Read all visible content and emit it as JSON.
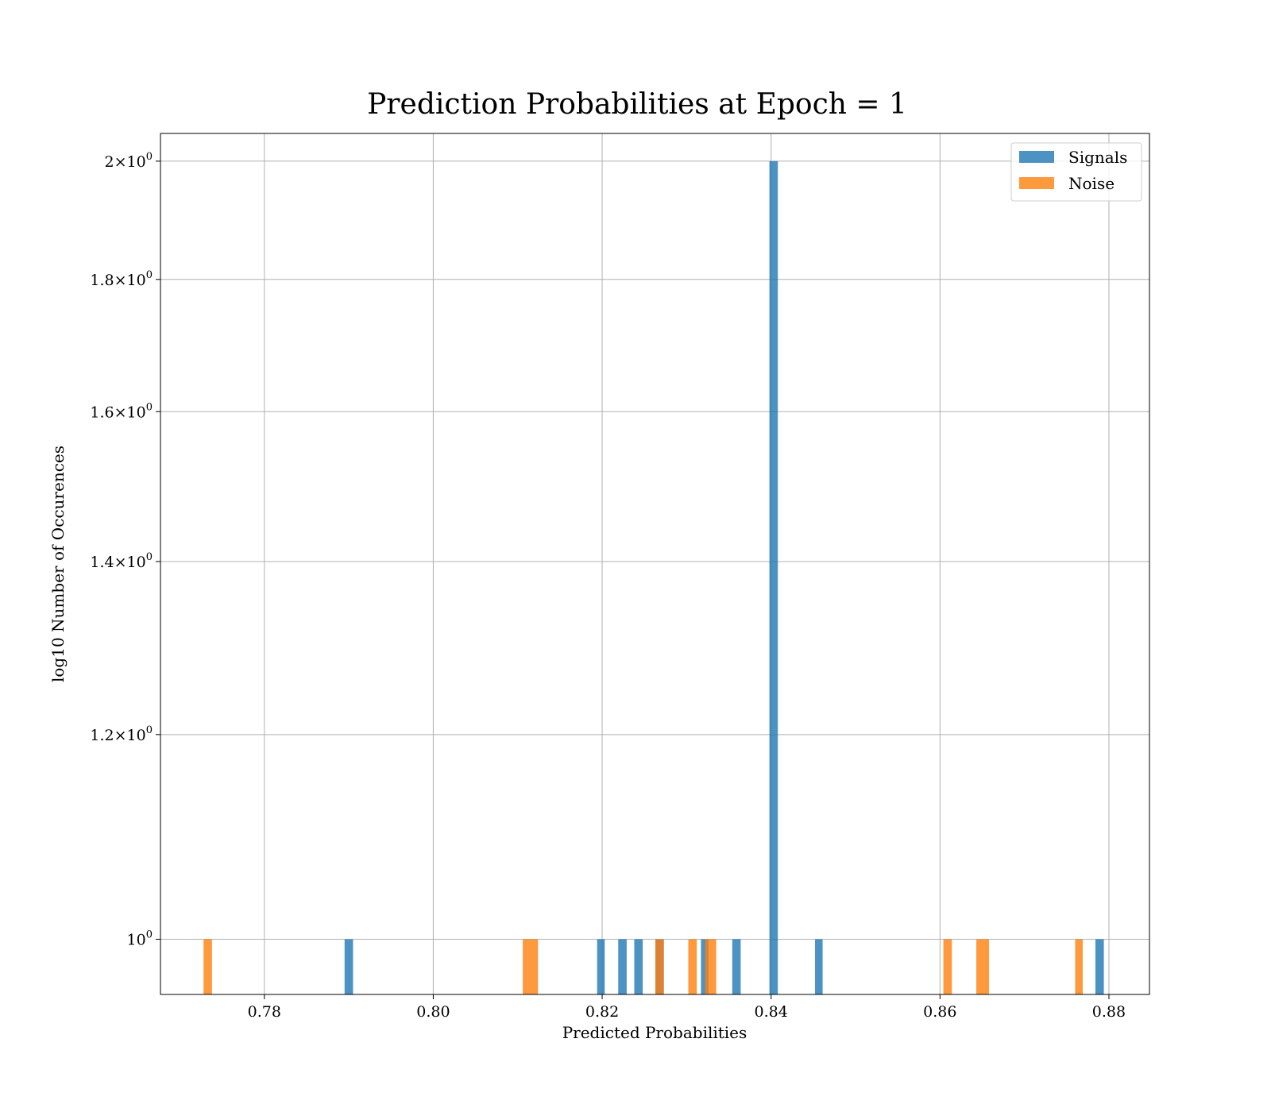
{
  "chart_data": {
    "type": "bar",
    "title": "Prediction Probabilities at Epoch = 1",
    "xlabel": "Predicted Probabilities",
    "ylabel": "log10 Number of Occurences",
    "xlim": [
      0.7677,
      0.8848
    ],
    "ylim": [
      0.952,
      2.05
    ],
    "yscale": "log",
    "grid": true,
    "legend_position": "top-right",
    "x_ticks": [
      {
        "value": 0.78,
        "label": "0.78"
      },
      {
        "value": 0.8,
        "label": "0.80"
      },
      {
        "value": 0.82,
        "label": "0.82"
      },
      {
        "value": 0.84,
        "label": "0.84"
      },
      {
        "value": 0.86,
        "label": "0.86"
      },
      {
        "value": 0.88,
        "label": "0.88"
      }
    ],
    "y_ticks": [
      {
        "value": 1.0,
        "mantissa": "",
        "label": "10"
      },
      {
        "value": 1.2,
        "mantissa": "1.2",
        "label": "10"
      },
      {
        "value": 1.4,
        "mantissa": "1.4",
        "label": "10"
      },
      {
        "value": 1.6,
        "mantissa": "1.6",
        "label": "10"
      },
      {
        "value": 1.8,
        "mantissa": "1.8",
        "label": "10"
      },
      {
        "value": 2.0,
        "mantissa": "2",
        "label": "10"
      }
    ],
    "times_symbol": "×",
    "exponent": "0",
    "series": [
      {
        "name": "Signals",
        "color": "#1f77b4",
        "bars": [
          {
            "x0": 0.7895,
            "x1": 0.7905,
            "count": 1
          },
          {
            "x0": 0.8194,
            "x1": 0.8203,
            "count": 1
          },
          {
            "x0": 0.8219,
            "x1": 0.8229,
            "count": 1
          },
          {
            "x0": 0.8238,
            "x1": 0.8248,
            "count": 1
          },
          {
            "x0": 0.8263,
            "x1": 0.8273,
            "count": 1
          },
          {
            "x0": 0.8317,
            "x1": 0.8326,
            "count": 1
          },
          {
            "x0": 0.8354,
            "x1": 0.8364,
            "count": 1
          },
          {
            "x0": 0.8398,
            "x1": 0.8408,
            "count": 2
          },
          {
            "x0": 0.8452,
            "x1": 0.8461,
            "count": 1
          },
          {
            "x0": 0.8784,
            "x1": 0.8794,
            "count": 1
          }
        ]
      },
      {
        "name": "Noise",
        "color": "#ff7f0e",
        "bars": [
          {
            "x0": 0.7728,
            "x1": 0.7738,
            "count": 1
          },
          {
            "x0": 0.8106,
            "x1": 0.8124,
            "count": 1
          },
          {
            "x0": 0.8263,
            "x1": 0.8273,
            "count": 1
          },
          {
            "x0": 0.8302,
            "x1": 0.8312,
            "count": 1
          },
          {
            "x0": 0.8322,
            "x1": 0.8335,
            "count": 1
          },
          {
            "x0": 0.8604,
            "x1": 0.8614,
            "count": 1
          },
          {
            "x0": 0.8643,
            "x1": 0.8658,
            "count": 1
          },
          {
            "x0": 0.876,
            "x1": 0.8769,
            "count": 1
          }
        ]
      }
    ]
  }
}
